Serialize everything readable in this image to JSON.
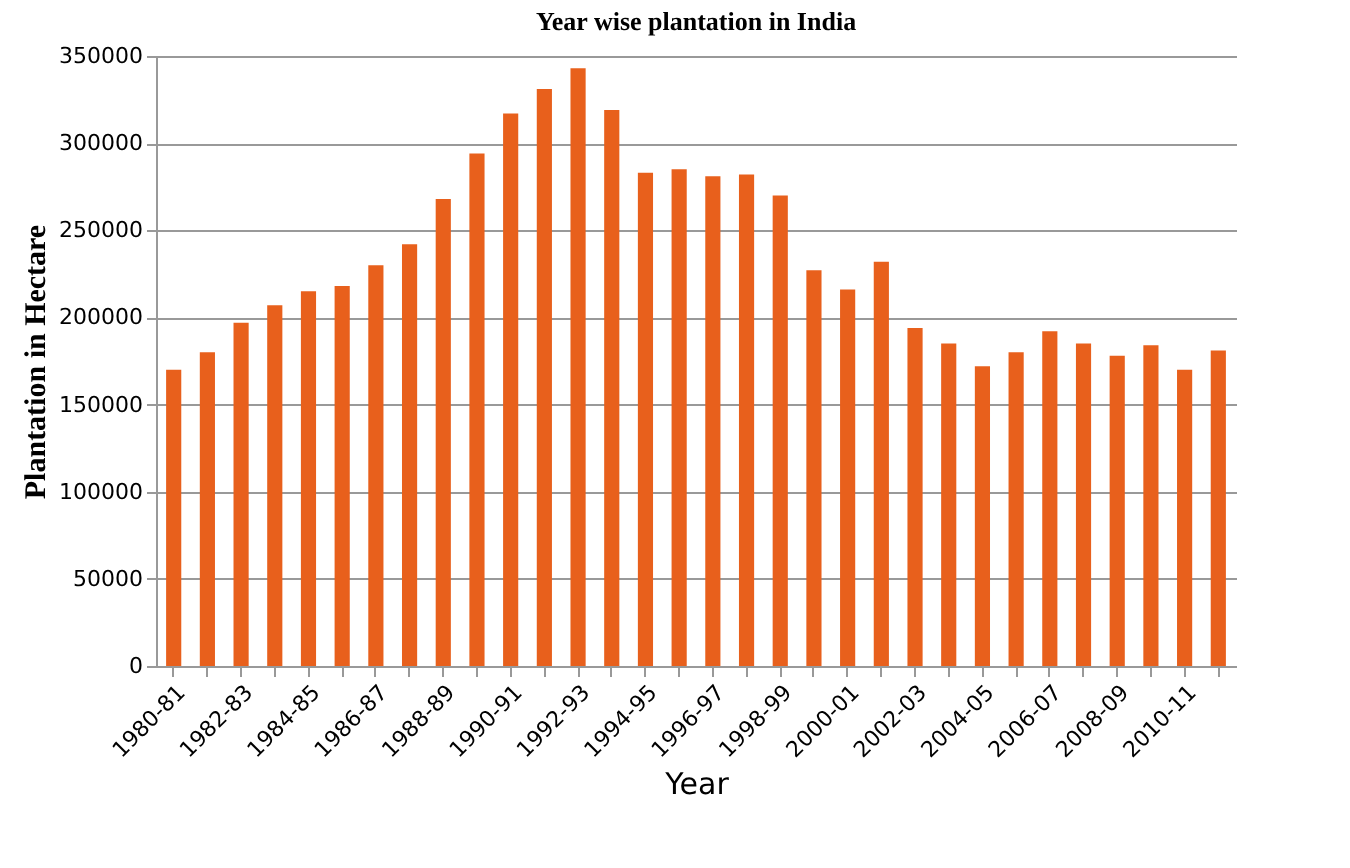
{
  "chart_data": {
    "type": "bar",
    "title": "Year wise plantation in India",
    "xlabel": "Year",
    "ylabel": "Plantation in Hectare",
    "categories": [
      "1980-81",
      null,
      "1982-83",
      null,
      "1984-85",
      null,
      "1986-87",
      null,
      "1988-89",
      null,
      "1990-91",
      null,
      "1992-93",
      null,
      "1994-95",
      null,
      "1996-97",
      null,
      "1998-99",
      null,
      "2000-01",
      null,
      "2002-03",
      null,
      "2004-05",
      null,
      "2006-07",
      null,
      "2008-09",
      null,
      "2010-11",
      null
    ],
    "values": [
      170000,
      180000,
      197000,
      207000,
      215000,
      218000,
      230000,
      242000,
      268000,
      294000,
      317000,
      331000,
      343000,
      319000,
      283000,
      285000,
      281000,
      282000,
      270000,
      227000,
      216000,
      232000,
      194000,
      185000,
      172000,
      180000,
      192000,
      185000,
      178000,
      184000,
      170000,
      181000
    ],
    "color": "#e8601c",
    "ylim": [
      0,
      350000
    ],
    "yticks": [
      0,
      50000,
      100000,
      150000,
      200000,
      250000,
      300000,
      350000
    ],
    "grid": "y"
  }
}
